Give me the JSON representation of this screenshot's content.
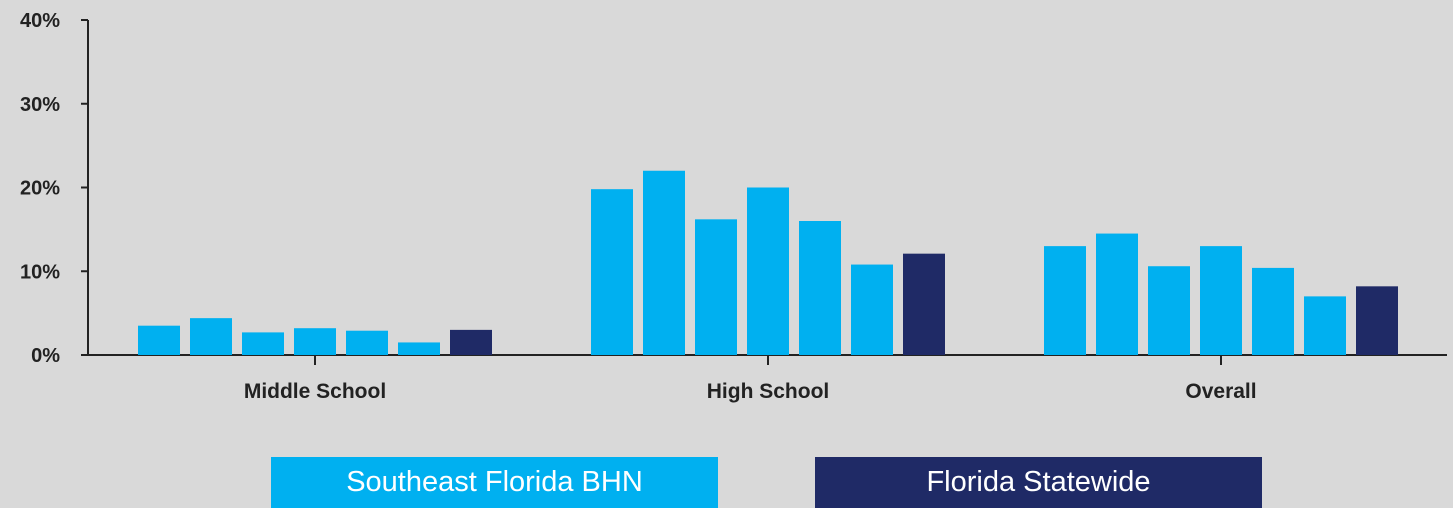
{
  "chart_data": {
    "type": "bar",
    "categories": [
      "Middle School",
      "High School",
      "Overall"
    ],
    "series": [
      {
        "group": "Southeast Florida BHN",
        "color": "#00b0f0",
        "values": [
          3.5,
          19.8,
          13.0
        ]
      },
      {
        "group": "Southeast Florida BHN",
        "color": "#00b0f0",
        "values": [
          4.4,
          22.0,
          14.5
        ]
      },
      {
        "group": "Southeast Florida BHN",
        "color": "#00b0f0",
        "values": [
          2.7,
          16.2,
          10.6
        ]
      },
      {
        "group": "Southeast Florida BHN",
        "color": "#00b0f0",
        "values": [
          3.2,
          20.0,
          13.0
        ]
      },
      {
        "group": "Southeast Florida BHN",
        "color": "#00b0f0",
        "values": [
          2.9,
          16.0,
          10.4
        ]
      },
      {
        "group": "Southeast Florida BHN",
        "color": "#00b0f0",
        "values": [
          1.5,
          10.8,
          7.0
        ]
      },
      {
        "group": "Florida Statewide",
        "color": "#1f2a66",
        "values": [
          3.0,
          12.1,
          8.2
        ]
      }
    ],
    "ylim": [
      0,
      40
    ],
    "yticks": [
      "0%",
      "10%",
      "20%",
      "30%",
      "40%"
    ],
    "ytick_values": [
      0,
      10,
      20,
      30,
      40
    ],
    "grid": false,
    "legend_position": "bottom"
  },
  "legend": [
    {
      "label": "Southeast Florida BHN",
      "color": "#00b0f0"
    },
    {
      "label": "Florida Statewide",
      "color": "#1f2a66"
    }
  ],
  "colors": {
    "background": "#d9d9d9",
    "axis": "#222222"
  }
}
